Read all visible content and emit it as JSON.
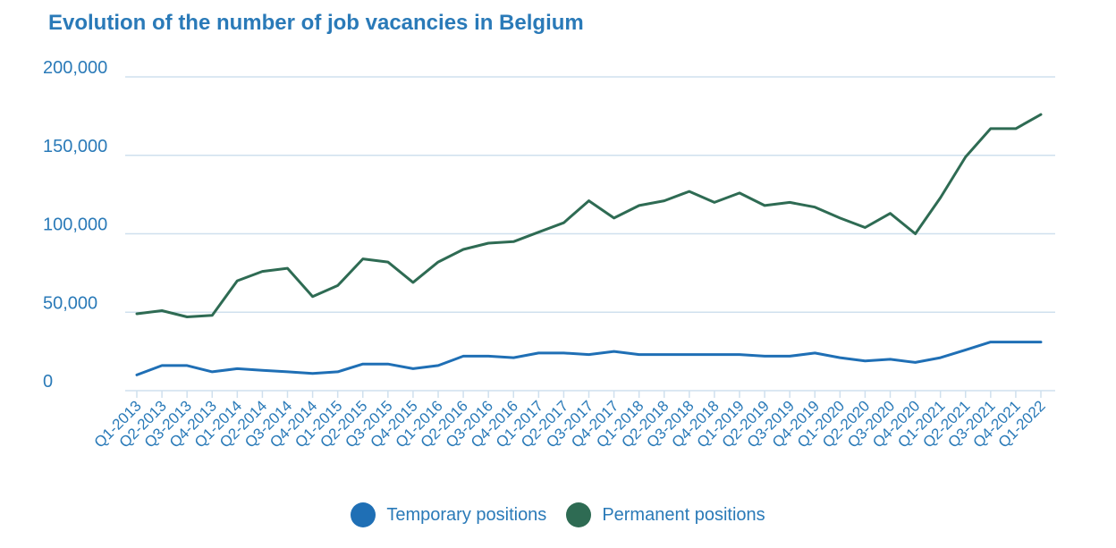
{
  "chart_data": {
    "type": "line",
    "title": "Evolution of the number of job vacancies in Belgium",
    "xlabel": "",
    "ylabel": "",
    "ylim": [
      0,
      200000
    ],
    "yticks": [
      0,
      50000,
      100000,
      150000,
      200000
    ],
    "ytick_labels": [
      "0",
      "50,000",
      "100,000",
      "150,000",
      "200,000"
    ],
    "grid": true,
    "legend_position": "bottom",
    "categories": [
      "Q1-2013",
      "Q2-2013",
      "Q3-2013",
      "Q4-2013",
      "Q1-2014",
      "Q2-2014",
      "Q3-2014",
      "Q4-2014",
      "Q1-2015",
      "Q2-2015",
      "Q3-2015",
      "Q4-2015",
      "Q1-2016",
      "Q2-2016",
      "Q3-2016",
      "Q4-2016",
      "Q1-2017",
      "Q2-2017",
      "Q3-2017",
      "Q4-2017",
      "Q1-2018",
      "Q2-2018",
      "Q3-2018",
      "Q4-2018",
      "Q1-2019",
      "Q2-2019",
      "Q3-2019",
      "Q4-2019",
      "Q1-2020",
      "Q2-2020",
      "Q3-2020",
      "Q4-2020",
      "Q1-2021",
      "Q2-2021",
      "Q3-2021",
      "Q4-2021",
      "Q1-2022"
    ],
    "series": [
      {
        "name": "Temporary positions",
        "color": "#1f6fb5",
        "values": [
          10000,
          16000,
          16000,
          12000,
          14000,
          13000,
          12000,
          11000,
          12000,
          17000,
          17000,
          14000,
          16000,
          22000,
          22000,
          21000,
          24000,
          24000,
          23000,
          25000,
          23000,
          23000,
          23000,
          23000,
          23000,
          22000,
          22000,
          24000,
          21000,
          19000,
          20000,
          18000,
          21000,
          26000,
          31000,
          31000,
          31000
        ]
      },
      {
        "name": "Permanent positions",
        "color": "#2e6b53",
        "values": [
          49000,
          51000,
          47000,
          48000,
          70000,
          76000,
          78000,
          60000,
          67000,
          84000,
          82000,
          69000,
          82000,
          90000,
          94000,
          95000,
          101000,
          107000,
          121000,
          110000,
          118000,
          121000,
          127000,
          120000,
          126000,
          118000,
          120000,
          117000,
          110000,
          104000,
          113000,
          100000,
          123000,
          149000,
          167000,
          167000,
          176000
        ]
      }
    ]
  }
}
